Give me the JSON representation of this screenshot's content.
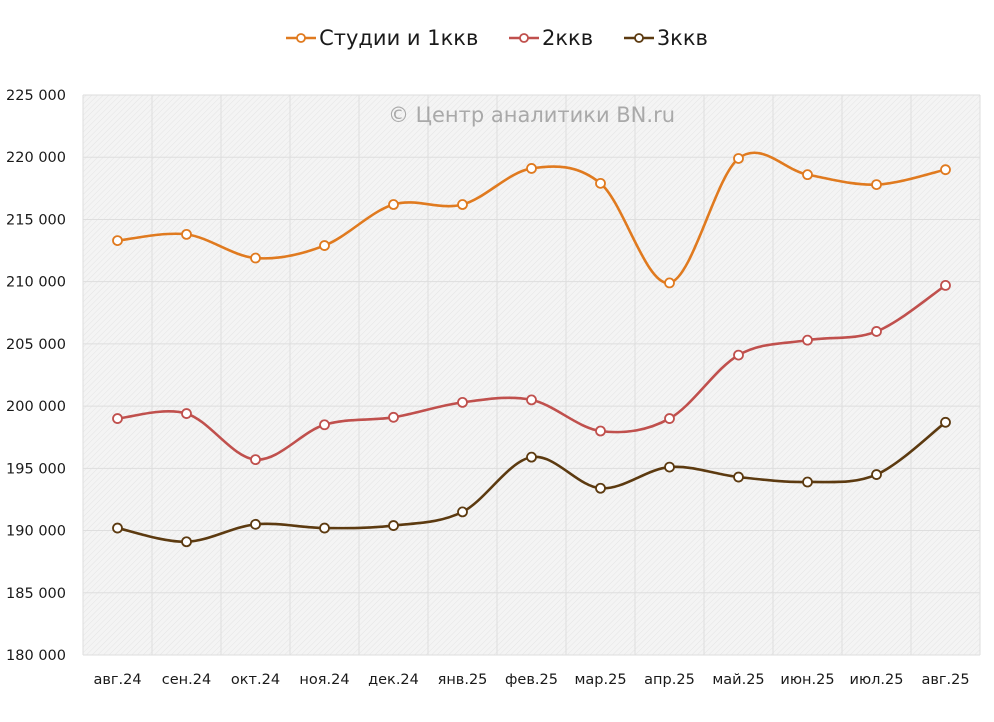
{
  "chart_data": {
    "type": "line",
    "title": "",
    "watermark": "© Центр аналитики BN.ru",
    "xlabel": "",
    "ylabel": "",
    "ylim": [
      180000,
      225000
    ],
    "ytick_step": 5000,
    "yticks": [
      "180 000",
      "185 000",
      "190 000",
      "195 000",
      "200 000",
      "205 000",
      "210 000",
      "215 000",
      "220 000",
      "225 000"
    ],
    "categories": [
      "авг.24",
      "сен.24",
      "окт.24",
      "ноя.24",
      "дек.24",
      "янв.25",
      "фев.25",
      "мар.25",
      "апр.25",
      "май.25",
      "июн.25",
      "июл.25",
      "авг.25"
    ],
    "grid": true,
    "smooth": true,
    "legend_position": "top-center",
    "series": [
      {
        "name": "Студии и 1ккв",
        "color": "#E07A1F",
        "values": [
          213300,
          213800,
          211900,
          212900,
          216200,
          216200,
          219100,
          217900,
          209900,
          219900,
          218600,
          217800,
          219000
        ]
      },
      {
        "name": "2ккв",
        "color": "#C0504D",
        "values": [
          199000,
          199400,
          195700,
          198500,
          199100,
          200300,
          200500,
          198000,
          199000,
          204100,
          205300,
          206000,
          209700
        ]
      },
      {
        "name": "3ккв",
        "color": "#5C3A10",
        "values": [
          190200,
          189100,
          190500,
          190200,
          190400,
          191500,
          195900,
          193400,
          195100,
          194300,
          193900,
          194500,
          198700
        ]
      }
    ]
  }
}
